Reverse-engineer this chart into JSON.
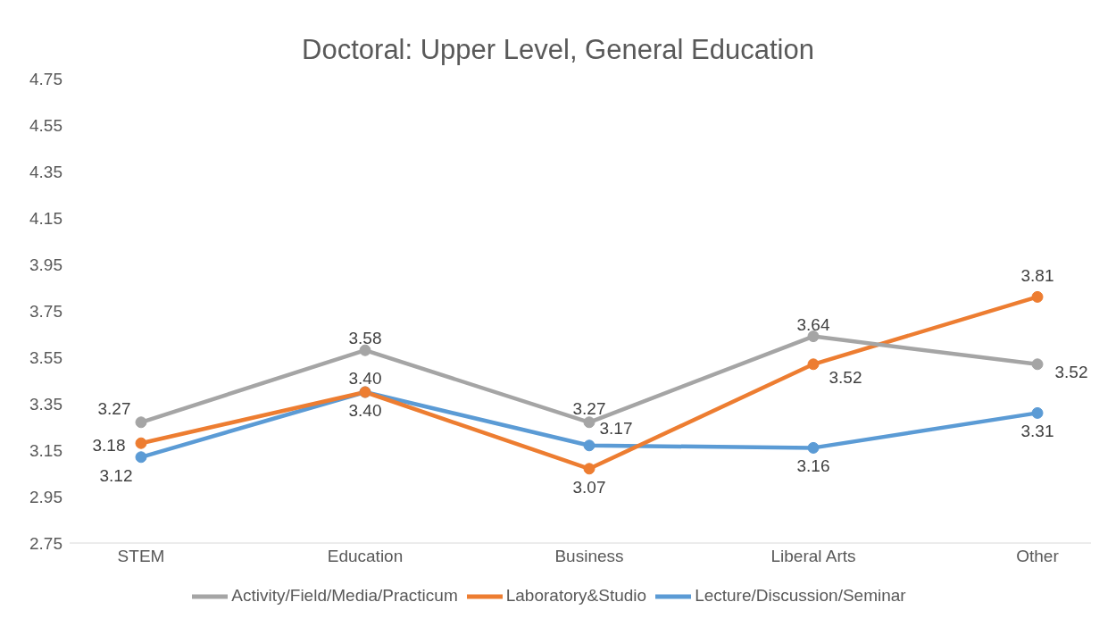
{
  "chart_data": {
    "type": "line",
    "title": "Doctoral: Upper Level, General Education",
    "categories": [
      "STEM",
      "Education",
      "Business",
      "Liberal Arts",
      "Other"
    ],
    "series": [
      {
        "name": "Lecture/Discussion/Seminar",
        "color": "#5b9bd5",
        "values": [
          3.12,
          3.4,
          3.17,
          3.16,
          3.31
        ],
        "value_labels": [
          "3.12",
          "3.40",
          "3.17",
          "3.16",
          "3.31"
        ]
      },
      {
        "name": "Laboratory&Studio",
        "color": "#ed7d31",
        "values": [
          3.18,
          3.4,
          3.07,
          3.52,
          3.81
        ],
        "value_labels": [
          "3.18",
          "3.40",
          "3.07",
          "3.52",
          "3.81"
        ]
      },
      {
        "name": "Activity/Field/Media/Practicum",
        "color": "#a5a5a5",
        "values": [
          3.27,
          3.58,
          3.27,
          3.64,
          3.52
        ],
        "value_labels": [
          "3.27",
          "3.58",
          "3.27",
          "3.64",
          "3.52"
        ]
      }
    ],
    "ylim": [
      2.75,
      4.75
    ],
    "yticks": [
      2.75,
      2.95,
      3.15,
      3.35,
      3.55,
      3.75,
      3.95,
      4.15,
      4.35,
      4.55,
      4.75
    ],
    "grid": false,
    "legend": "bottom",
    "marker": "circle",
    "line_style": "solid"
  }
}
